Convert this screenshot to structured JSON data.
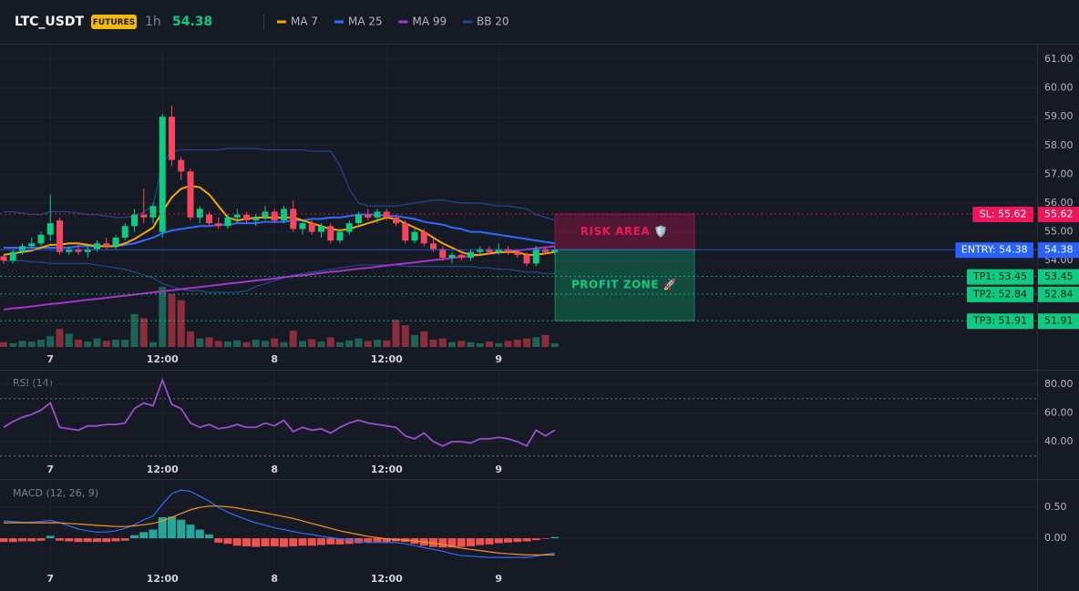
{
  "header": {
    "symbol": "LTC_USDT",
    "badge": "FUTURES",
    "interval": "1h",
    "price": 54.38
  },
  "chart_data": [
    {
      "type": "candlestick",
      "categories": [
        null,
        null,
        null,
        null,
        null,
        "7",
        null,
        null,
        null,
        null,
        null,
        null,
        null,
        null,
        null,
        null,
        null,
        "12:00",
        null,
        null,
        null,
        null,
        null,
        null,
        null,
        null,
        null,
        null,
        null,
        "8",
        null,
        null,
        null,
        null,
        null,
        null,
        null,
        null,
        null,
        null,
        null,
        "12:00",
        null,
        null,
        null,
        null,
        null,
        null,
        null,
        null,
        null,
        null,
        null,
        "9",
        null,
        null,
        null,
        null,
        null,
        null
      ],
      "open": [
        54.15,
        54.0,
        54.3,
        54.5,
        54.6,
        54.9,
        55.4,
        54.3,
        54.4,
        54.3,
        54.4,
        54.6,
        54.5,
        54.8,
        55.2,
        55.6,
        55.5,
        55.0,
        59.0,
        57.5,
        57.1,
        55.5,
        55.6,
        55.3,
        55.2,
        55.5,
        55.6,
        55.4,
        55.5,
        55.7,
        55.4,
        55.8,
        55.1,
        55.3,
        55.0,
        55.2,
        54.7,
        55.0,
        55.3,
        55.6,
        55.5,
        55.7,
        55.5,
        55.3,
        54.7,
        55.0,
        54.6,
        54.4,
        54.1,
        54.2,
        54.1,
        54.3,
        54.4,
        54.3,
        54.4,
        54.3,
        54.2,
        53.9,
        54.4,
        54.3
      ],
      "high": [
        54.2,
        54.4,
        54.6,
        54.8,
        55.0,
        56.3,
        55.5,
        54.5,
        54.6,
        54.5,
        54.7,
        54.8,
        54.9,
        55.3,
        55.8,
        56.5,
        56.0,
        59.1,
        59.4,
        57.6,
        57.2,
        55.9,
        55.7,
        55.5,
        55.6,
        55.8,
        55.7,
        55.6,
        55.9,
        55.8,
        55.9,
        56.1,
        55.4,
        55.4,
        55.3,
        55.3,
        55.1,
        55.4,
        55.7,
        55.8,
        55.8,
        55.8,
        55.6,
        55.4,
        55.1,
        55.1,
        54.8,
        54.5,
        54.3,
        54.3,
        54.4,
        54.5,
        54.5,
        54.6,
        54.5,
        54.4,
        54.3,
        54.5,
        54.5,
        54.5
      ],
      "low": [
        53.9,
        53.9,
        54.2,
        54.4,
        54.5,
        54.7,
        54.2,
        54.2,
        54.2,
        54.1,
        54.3,
        54.4,
        54.4,
        54.7,
        55.0,
        55.3,
        55.3,
        54.8,
        57.3,
        56.8,
        55.4,
        55.3,
        55.2,
        55.1,
        55.1,
        55.3,
        55.3,
        55.2,
        55.4,
        55.3,
        55.3,
        55.0,
        54.9,
        54.9,
        54.8,
        54.6,
        54.6,
        54.9,
        55.2,
        55.4,
        55.3,
        55.4,
        55.2,
        54.6,
        54.6,
        54.5,
        54.3,
        54.0,
        53.9,
        54.0,
        54.0,
        54.2,
        54.2,
        54.2,
        54.2,
        54.1,
        53.8,
        53.8,
        54.2,
        54.2
      ],
      "close": [
        54.0,
        54.3,
        54.5,
        54.6,
        54.9,
        55.3,
        54.3,
        54.4,
        54.3,
        54.4,
        54.6,
        54.5,
        54.8,
        55.2,
        55.6,
        55.5,
        55.9,
        59.0,
        57.5,
        57.1,
        55.5,
        55.8,
        55.3,
        55.2,
        55.5,
        55.6,
        55.4,
        55.5,
        55.7,
        55.4,
        55.8,
        55.1,
        55.3,
        55.0,
        55.2,
        54.7,
        55.0,
        55.3,
        55.6,
        55.5,
        55.7,
        55.5,
        55.3,
        54.7,
        55.0,
        54.6,
        54.4,
        54.1,
        54.2,
        54.1,
        54.3,
        54.4,
        54.3,
        54.4,
        54.3,
        54.2,
        53.9,
        54.4,
        54.3,
        54.38
      ],
      "volume": [
        8,
        6,
        10,
        9,
        12,
        18,
        30,
        22,
        12,
        9,
        14,
        10,
        12,
        12,
        55,
        48,
        8,
        100,
        88,
        78,
        26,
        14,
        16,
        10,
        9,
        11,
        8,
        12,
        10,
        14,
        8,
        27,
        10,
        13,
        9,
        16,
        8,
        11,
        14,
        10,
        12,
        11,
        45,
        36,
        20,
        26,
        12,
        14,
        8,
        10,
        8,
        6,
        9,
        6,
        10,
        12,
        14,
        16,
        20,
        6
      ],
      "colors": {
        "up": "#0ecb81",
        "down": "#f6465d",
        "volume_up": "#1d6457",
        "volume_down": "#8a2e3c"
      },
      "series": [
        {
          "name": "MA 7",
          "color": "#f7a600",
          "values": [
            54.2,
            54.25,
            54.3,
            54.35,
            54.45,
            54.55,
            54.55,
            54.6,
            54.6,
            54.55,
            54.5,
            54.5,
            54.5,
            54.6,
            54.75,
            54.95,
            55.15,
            55.7,
            56.2,
            56.5,
            56.6,
            56.55,
            56.3,
            55.9,
            55.5,
            55.4,
            55.45,
            55.5,
            55.5,
            55.5,
            55.5,
            55.5,
            55.4,
            55.3,
            55.2,
            55.1,
            55.05,
            55.1,
            55.2,
            55.3,
            55.4,
            55.5,
            55.45,
            55.3,
            55.15,
            55.0,
            54.8,
            54.6,
            54.45,
            54.3,
            54.2,
            54.2,
            54.25,
            54.3,
            54.3,
            54.3,
            54.2,
            54.2,
            54.25,
            54.3
          ]
        },
        {
          "name": "MA 25",
          "color": "#2f6bff",
          "values": [
            54.45,
            54.45,
            54.45,
            54.45,
            54.45,
            54.45,
            54.45,
            54.45,
            54.5,
            54.5,
            54.5,
            54.5,
            54.5,
            54.55,
            54.6,
            54.7,
            54.8,
            54.95,
            55.05,
            55.1,
            55.15,
            55.2,
            55.2,
            55.25,
            55.25,
            55.3,
            55.3,
            55.3,
            55.35,
            55.35,
            55.35,
            55.4,
            55.4,
            55.45,
            55.45,
            55.5,
            55.5,
            55.55,
            55.6,
            55.6,
            55.6,
            55.55,
            55.55,
            55.5,
            55.45,
            55.35,
            55.3,
            55.25,
            55.15,
            55.1,
            55.0,
            55.0,
            54.95,
            54.9,
            54.85,
            54.8,
            54.75,
            54.7,
            54.65,
            54.6
          ]
        },
        {
          "name": "MA 99",
          "color": "#a535c9",
          "values": [
            52.3,
            52.34,
            52.37,
            52.41,
            52.45,
            52.49,
            52.52,
            52.56,
            52.6,
            52.64,
            52.67,
            52.71,
            52.75,
            52.78,
            52.82,
            52.86,
            52.9,
            52.93,
            52.97,
            53.01,
            53.05,
            53.08,
            53.12,
            53.16,
            53.2,
            53.23,
            53.27,
            53.31,
            53.34,
            53.38,
            53.42,
            53.46,
            53.49,
            53.53,
            53.57,
            53.61,
            53.64,
            53.68,
            53.72,
            53.75,
            53.79,
            53.83,
            53.87,
            53.9,
            53.94,
            53.98,
            54.02,
            54.05,
            54.09,
            54.13,
            54.16,
            54.2,
            54.24,
            54.28,
            54.31,
            54.35,
            54.39,
            54.43,
            54.46,
            54.5
          ]
        },
        {
          "name": "BB 20",
          "color": "#27458f",
          "upper": [
            55.7,
            55.7,
            55.65,
            55.6,
            55.6,
            55.7,
            55.7,
            55.7,
            55.65,
            55.6,
            55.6,
            55.55,
            55.5,
            55.5,
            55.55,
            55.7,
            55.9,
            57.4,
            57.8,
            57.85,
            57.85,
            57.85,
            57.85,
            57.85,
            57.9,
            57.9,
            57.9,
            57.9,
            57.85,
            57.85,
            57.85,
            57.85,
            57.85,
            57.8,
            57.8,
            57.8,
            57.3,
            56.5,
            56.0,
            55.9,
            55.9,
            55.9,
            55.9,
            55.95,
            56.0,
            56.05,
            56.1,
            56.1,
            56.05,
            56.0,
            56.0,
            56.0,
            55.95,
            55.9,
            55.9,
            55.85,
            55.8,
            55.6,
            55.5,
            55.4
          ],
          "lower": [
            54.0,
            54.0,
            54.0,
            53.95,
            53.95,
            53.9,
            53.9,
            53.9,
            53.9,
            53.9,
            53.85,
            53.8,
            53.75,
            53.7,
            53.6,
            53.5,
            53.4,
            53.2,
            53.1,
            53.0,
            52.95,
            52.95,
            52.9,
            52.9,
            52.9,
            52.9,
            52.95,
            53.1,
            53.2,
            53.3,
            53.4,
            53.5,
            53.55,
            53.6,
            53.65,
            53.7,
            53.75,
            53.8,
            53.85,
            53.85,
            53.85,
            53.85,
            53.85,
            53.8,
            53.8,
            53.8,
            53.8,
            53.8,
            53.8,
            53.8,
            53.8,
            53.75,
            53.75,
            53.7,
            53.7,
            53.65,
            53.6,
            53.6,
            53.55,
            53.55
          ]
        }
      ],
      "ylim": [
        51.0,
        61.54
      ],
      "yticks": [
        {
          "value": 54,
          "label": "54.00"
        },
        {
          "value": 55,
          "label": "55.00"
        },
        {
          "value": 56,
          "label": "56.00"
        },
        {
          "value": 57,
          "label": "57.00"
        },
        {
          "value": 58,
          "label": "58.00"
        },
        {
          "value": 59,
          "label": "59.00"
        },
        {
          "value": 60,
          "label": "60.00"
        },
        {
          "value": 61,
          "label": "61.00"
        }
      ],
      "grid": true,
      "levels": [
        {
          "label": "SL: 55.62",
          "value": 55.62,
          "color": "#f0145a",
          "style": "dotted"
        },
        {
          "label": "ENTRY: 54.38",
          "value": 54.38,
          "color": "#2962ff",
          "style": "solid"
        },
        {
          "label": "TP1: 53.45",
          "value": 53.45,
          "color": "#0ecb81",
          "style": "dotted"
        },
        {
          "label": "TP2: 52.84",
          "value": 52.84,
          "color": "#0ecb81",
          "style": "dotted"
        },
        {
          "label": "TP3: 51.91",
          "value": 51.91,
          "color": "#0ecb81",
          "style": "dotted"
        }
      ],
      "zones": [
        {
          "label": "RISK AREA 🛡️",
          "from": 55.62,
          "to": 54.38,
          "color": "#f0145a"
        },
        {
          "label": "PROFIT ZONE 🚀",
          "from": 54.38,
          "to": 51.91,
          "color": "#0ecb81"
        }
      ]
    },
    {
      "type": "line",
      "title": "RSI (14)",
      "categories": [
        null,
        null,
        null,
        null,
        null,
        "7",
        null,
        null,
        null,
        null,
        null,
        null,
        null,
        null,
        null,
        null,
        null,
        "12:00",
        null,
        null,
        null,
        null,
        null,
        null,
        null,
        null,
        null,
        null,
        null,
        "8",
        null,
        null,
        null,
        null,
        null,
        null,
        null,
        null,
        null,
        null,
        null,
        "12:00",
        null,
        null,
        null,
        null,
        null,
        null,
        null,
        null,
        null,
        null,
        null,
        "9",
        null,
        null,
        null,
        null,
        null,
        null
      ],
      "values": [
        50,
        54,
        57,
        59,
        62,
        67,
        50,
        49,
        48,
        51,
        51,
        52,
        52,
        53,
        63,
        67,
        65,
        83,
        66,
        63,
        53,
        50,
        52,
        49,
        50,
        52,
        50,
        50,
        53,
        51,
        55,
        47,
        50,
        48,
        49,
        46,
        50,
        53,
        55,
        53,
        52,
        51,
        50,
        44,
        42,
        46,
        40,
        37,
        40,
        40,
        39,
        42,
        42,
        43,
        42,
        40,
        37,
        48,
        44,
        48
      ],
      "color": "#9c4dcc",
      "ylim": [
        27.3,
        88.9
      ],
      "yticks": [
        {
          "value": 40,
          "label": "40.00"
        },
        {
          "value": 60,
          "label": "60.00"
        },
        {
          "value": 80,
          "label": "80.00"
        }
      ],
      "levels": [
        70,
        30
      ],
      "grid": true
    },
    {
      "type": "macd",
      "title": "MACD (12, 26, 9)",
      "categories": [
        null,
        null,
        null,
        null,
        null,
        "7",
        null,
        null,
        null,
        null,
        null,
        null,
        null,
        null,
        null,
        null,
        null,
        "12:00",
        null,
        null,
        null,
        null,
        null,
        null,
        null,
        null,
        null,
        null,
        null,
        "8",
        null,
        null,
        null,
        null,
        null,
        null,
        null,
        null,
        null,
        null,
        null,
        "12:00",
        null,
        null,
        null,
        null,
        null,
        null,
        null,
        null,
        null,
        null,
        null,
        "9",
        null,
        null,
        null,
        null,
        null,
        null
      ],
      "macd": [
        0.28,
        0.27,
        0.26,
        0.26,
        0.27,
        0.29,
        0.25,
        0.2,
        0.15,
        0.12,
        0.1,
        0.1,
        0.12,
        0.16,
        0.22,
        0.3,
        0.36,
        0.55,
        0.72,
        0.78,
        0.76,
        0.68,
        0.6,
        0.5,
        0.42,
        0.36,
        0.3,
        0.25,
        0.21,
        0.17,
        0.14,
        0.11,
        0.08,
        0.06,
        0.03,
        0.01,
        -0.01,
        -0.03,
        -0.05,
        -0.07,
        -0.07,
        -0.07,
        -0.07,
        -0.09,
        -0.12,
        -0.15,
        -0.18,
        -0.21,
        -0.25,
        -0.28,
        -0.29,
        -0.3,
        -0.31,
        -0.31,
        -0.31,
        -0.31,
        -0.31,
        -0.29,
        -0.26,
        -0.24
      ],
      "signal": [
        0.25,
        0.25,
        0.25,
        0.25,
        0.25,
        0.25,
        0.25,
        0.24,
        0.23,
        0.22,
        0.21,
        0.2,
        0.19,
        0.19,
        0.2,
        0.22,
        0.24,
        0.28,
        0.34,
        0.4,
        0.46,
        0.5,
        0.52,
        0.52,
        0.51,
        0.49,
        0.46,
        0.44,
        0.41,
        0.38,
        0.35,
        0.32,
        0.28,
        0.24,
        0.2,
        0.16,
        0.12,
        0.09,
        0.06,
        0.03,
        0.01,
        -0.01,
        -0.02,
        -0.03,
        -0.04,
        -0.06,
        -0.08,
        -0.1,
        -0.13,
        -0.16,
        -0.18,
        -0.2,
        -0.22,
        -0.24,
        -0.25,
        -0.26,
        -0.27,
        -0.27,
        -0.27,
        -0.27
      ],
      "histogram": [
        -0.06,
        -0.06,
        -0.05,
        -0.05,
        -0.04,
        0.04,
        -0.04,
        -0.05,
        -0.06,
        -0.06,
        -0.06,
        -0.06,
        -0.05,
        -0.04,
        0.05,
        0.1,
        0.14,
        0.34,
        0.35,
        0.3,
        0.22,
        0.14,
        0.06,
        -0.07,
        -0.09,
        -0.12,
        -0.13,
        -0.14,
        -0.13,
        -0.13,
        -0.14,
        -0.13,
        -0.12,
        -0.12,
        -0.11,
        -0.1,
        -0.1,
        -0.09,
        -0.08,
        -0.07,
        -0.06,
        -0.06,
        -0.05,
        -0.06,
        -0.09,
        -0.12,
        -0.14,
        -0.15,
        -0.15,
        -0.14,
        -0.13,
        -0.11,
        -0.1,
        -0.08,
        -0.07,
        -0.06,
        -0.05,
        -0.03,
        -0.01,
        0.02
      ],
      "colors": {
        "macd": "#2f6bff",
        "signal": "#f7931a",
        "up": "#26a69a",
        "down": "#ef5350"
      },
      "ylim": [
        -0.5,
        0.93
      ],
      "yticks": [
        {
          "value": 0,
          "label": "0.00"
        },
        {
          "value": 0.5,
          "label": "0.50"
        }
      ],
      "grid": true
    }
  ]
}
